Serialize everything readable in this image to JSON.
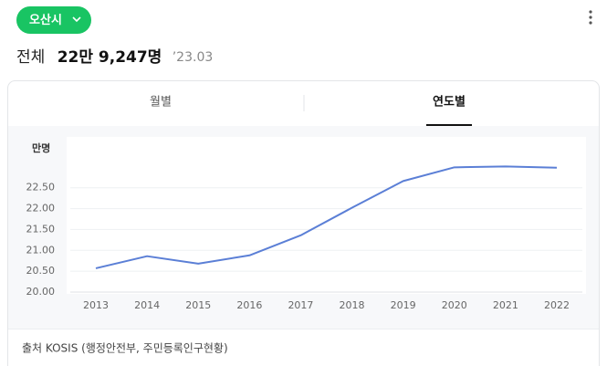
{
  "header": {
    "region_button": "오산시",
    "total_label": "전체",
    "total_value": "22만 9,247명",
    "date": "’23.03"
  },
  "tabs": [
    "월별",
    "연도별"
  ],
  "active_tab": 1,
  "chart_data": {
    "type": "line",
    "y_unit": "만명",
    "categories": [
      "2013",
      "2014",
      "2015",
      "2016",
      "2017",
      "2018",
      "2019",
      "2020",
      "2021",
      "2022"
    ],
    "values": [
      20.57,
      20.86,
      20.68,
      20.88,
      21.36,
      22.02,
      22.66,
      22.99,
      23.01,
      22.98
    ],
    "color": "#5b7fd6",
    "ylim": [
      20,
      23.5
    ],
    "yticks": [
      {
        "value": 20,
        "label": "20.00"
      },
      {
        "value": 20.5,
        "label": "20.50"
      },
      {
        "value": 21,
        "label": "21.00"
      },
      {
        "value": 21.5,
        "label": "21.50"
      },
      {
        "value": 22,
        "label": "22.00"
      },
      {
        "value": 22.5,
        "label": "22.50"
      }
    ],
    "grid": true
  },
  "source": "출처 KOSIS (행정안전부, 주민등록인구현황)"
}
